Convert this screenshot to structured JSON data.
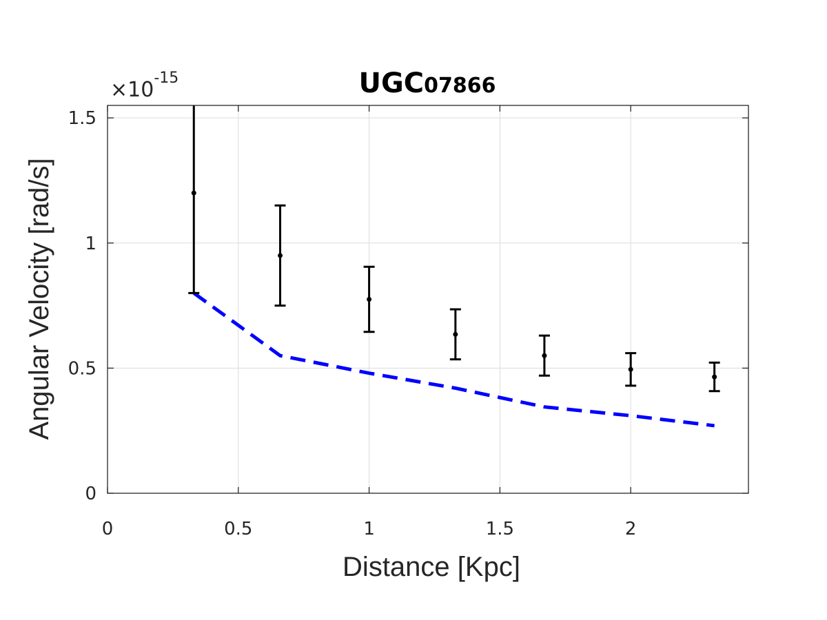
{
  "chart_data": {
    "type": "scatter",
    "title_main": "UGC",
    "title_sub": "07866",
    "xlabel": "Distance [Kpc]",
    "ylabel": "Angular Velocity [rad/s]",
    "exponent_prefix": "×10",
    "exponent_power": "-15",
    "xlim": [
      0,
      2.45
    ],
    "ylim": [
      0,
      1.55
    ],
    "x_ticks": [
      0,
      0.5,
      1,
      1.5,
      2
    ],
    "x_tick_labels": [
      "0",
      "0.5",
      "1",
      "1.5",
      "2"
    ],
    "y_ticks": [
      0,
      0.5,
      1,
      1.5
    ],
    "y_tick_labels": [
      "0",
      "0.5",
      "1",
      "1.5"
    ],
    "grid": true,
    "colors": {
      "observed": "#000000",
      "model": "#0000ff",
      "grid": "#dcdcdc",
      "axes": "#262626"
    },
    "observed": {
      "x": [
        0.33,
        0.66,
        1.0,
        1.33,
        1.67,
        2.0,
        2.32
      ],
      "y": [
        1.2,
        0.95,
        0.775,
        0.635,
        0.55,
        0.495,
        0.465
      ],
      "err": [
        0.4,
        0.2,
        0.13,
        0.1,
        0.08,
        0.065,
        0.057
      ]
    },
    "model": {
      "x": [
        0.33,
        0.66,
        1.0,
        1.33,
        1.67,
        2.0,
        2.32
      ],
      "y": [
        0.8,
        0.55,
        0.48,
        0.42,
        0.345,
        0.31,
        0.27
      ]
    }
  }
}
